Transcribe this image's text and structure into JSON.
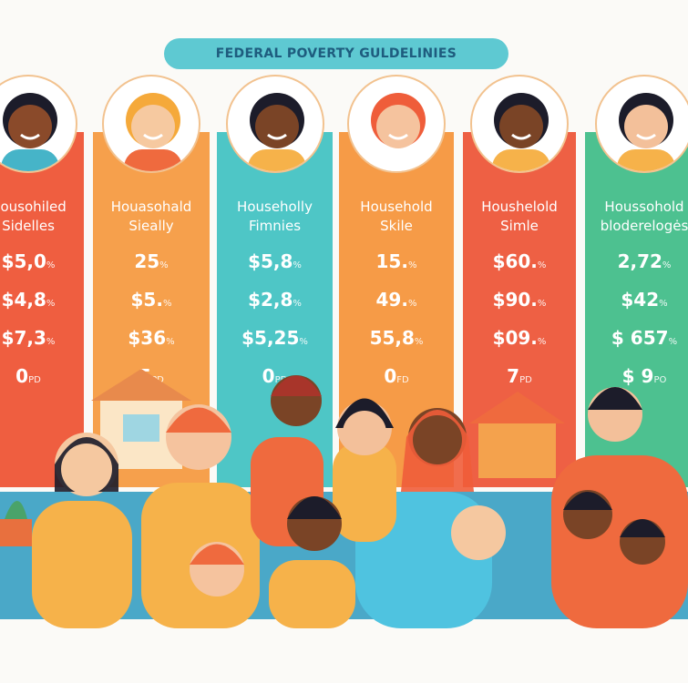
{
  "title": "FEDERAL POVERTY GULDELINIES",
  "columns": [
    {
      "label1": "Housohiled",
      "label2": "Sidelles",
      "values": [
        "$5,0",
        "$4,8",
        "$7,3",
        "0"
      ],
      "suffix": [
        "%",
        "%",
        "%",
        "PD"
      ],
      "color": "#ef5e40",
      "skin": "#8a4a2a",
      "hair": "#1c1c2a",
      "shirt": "#46b4c8"
    },
    {
      "label1": "Houasohald",
      "label2": "Sieally",
      "values": [
        "25",
        "$5.",
        "$36",
        "5"
      ],
      "suffix": [
        "%",
        "%",
        "%",
        "PD"
      ],
      "color": "#f6a04c",
      "skin": "#f6c9a0",
      "hair": "#f5a93a",
      "shirt": "#ef6a3e"
    },
    {
      "label1": "Householly",
      "label2": "Fimnies",
      "values": [
        "$5,8",
        "$2,8",
        "$5,25",
        "0"
      ],
      "suffix": [
        "%",
        "%",
        "%",
        "PD"
      ],
      "color": "#4ec6c6",
      "skin": "#7a4426",
      "hair": "#1c1c2a",
      "shirt": "#f6b24a"
    },
    {
      "label1": "Household",
      "label2": "Skile",
      "values": [
        "15.",
        "49.",
        "55,8",
        "0"
      ],
      "suffix": [
        "%",
        "%",
        "%",
        "FD"
      ],
      "color": "#f69b47",
      "skin": "#f5c39e",
      "hair": "#ef5d3a",
      "shirt": "#fff"
    },
    {
      "label1": "Houshelold",
      "label2": "Simle",
      "values": [
        "$60.",
        "$90.",
        "$09.",
        "7"
      ],
      "suffix": [
        "%",
        "%",
        "%",
        "PD"
      ],
      "color": "#ee6044",
      "skin": "#7a4426",
      "hair": "#1c1c2a",
      "shirt": "#f6b24a"
    },
    {
      "label1": "Houssohold",
      "label2": "bloderelogės",
      "values": [
        "2,72",
        "$42",
        "$ 657",
        "$  9"
      ],
      "suffix": [
        "%",
        "%",
        "%",
        "PO"
      ],
      "color": "#4dc190",
      "skin": "#f3c09a",
      "hair": "#1c1c2a",
      "shirt": "#f6b24a"
    }
  ]
}
